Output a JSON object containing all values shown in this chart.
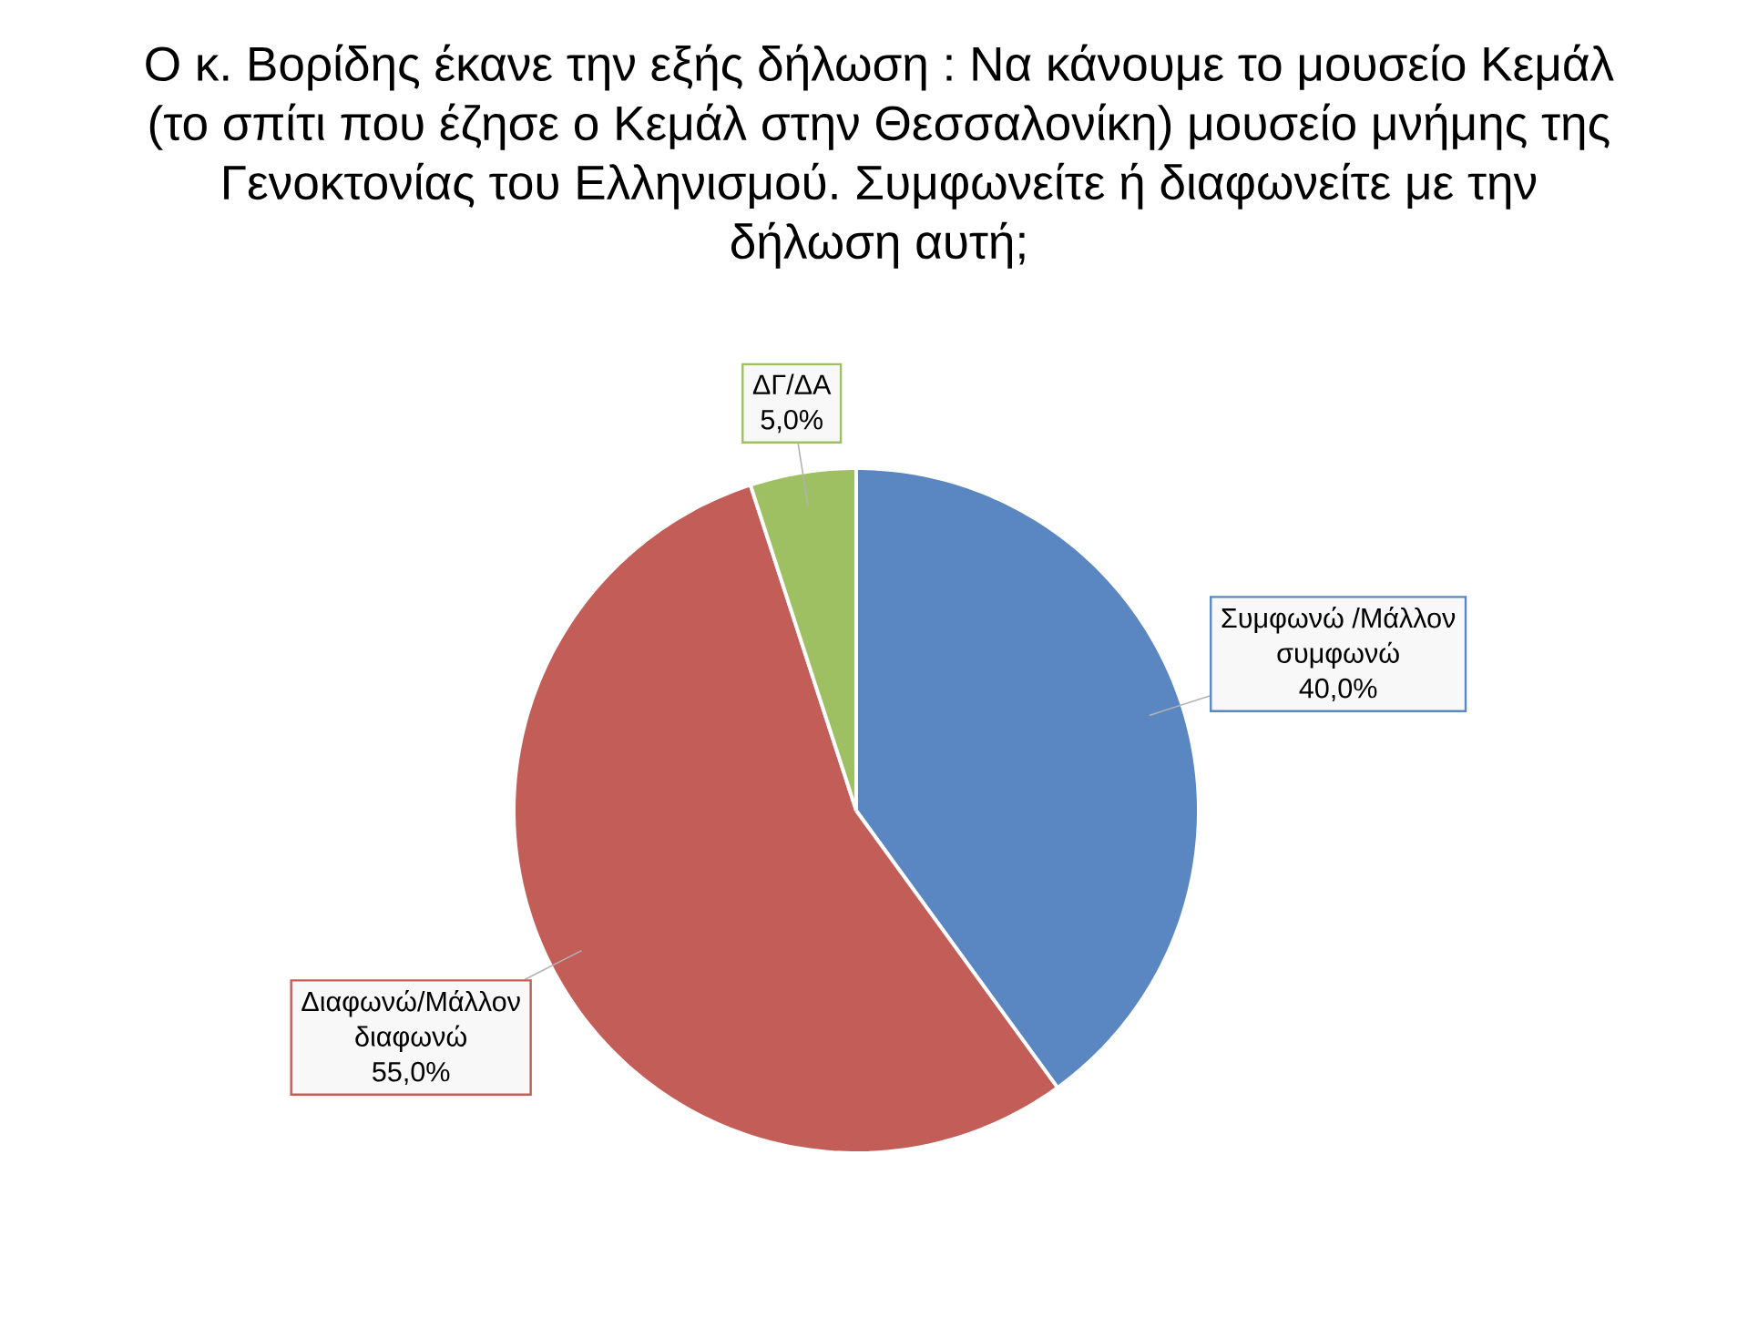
{
  "chart_data": {
    "type": "pie",
    "title": "Ο κ. Βορίδης έκανε την εξής δήλωση : Να κάνουμε το μουσείο Κεμάλ (το σπίτι που έζησε ο Κεμάλ στην Θεσσαλονίκη) μουσείο μνήμης της Γενοκτονίας του Ελληνισμού. Συμφωνείτε ή διαφωνείτε με την δήλωση αυτή;",
    "categories": [
      "Συμφωνώ /Μάλλον συμφωνώ",
      "Διαφωνώ/Μάλλον διαφωνώ",
      "ΔΓ/ΔΑ"
    ],
    "values": [
      40,
      55,
      5
    ],
    "colors": [
      "#5a87c1",
      "#c25d58",
      "#9fbf63"
    ],
    "value_labels": [
      "40,0%",
      "55,0%",
      "5,0%"
    ]
  }
}
